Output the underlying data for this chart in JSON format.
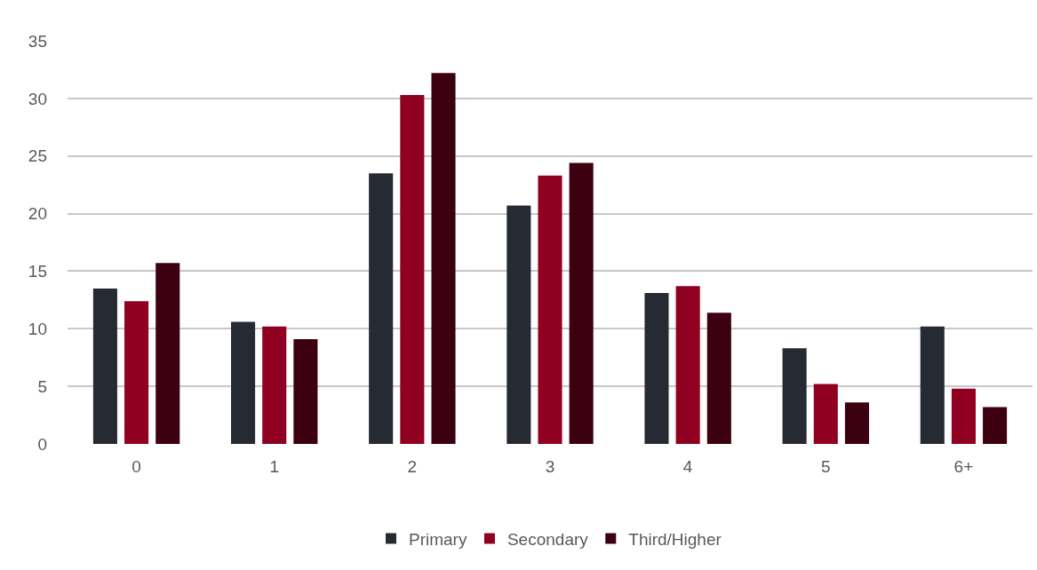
{
  "chart_data": {
    "type": "bar",
    "categories": [
      "0",
      "1",
      "2",
      "3",
      "4",
      "5",
      "6+"
    ],
    "series": [
      {
        "name": "Primary",
        "color": "#262a33",
        "values": [
          13.5,
          10.6,
          23.5,
          20.7,
          13.1,
          8.3,
          10.2
        ]
      },
      {
        "name": "Secondary",
        "color": "#900020",
        "values": [
          12.4,
          10.2,
          30.3,
          23.3,
          13.7,
          5.2,
          4.8
        ]
      },
      {
        "name": "Third/Higher",
        "color": "#3c0010",
        "values": [
          15.7,
          9.1,
          32.2,
          24.4,
          11.4,
          3.6,
          3.2
        ]
      }
    ],
    "ylim": [
      0,
      35
    ],
    "yticks": [
      0,
      5,
      10,
      15,
      20,
      25,
      30,
      35
    ],
    "grid": "y",
    "legend": "bottom"
  }
}
